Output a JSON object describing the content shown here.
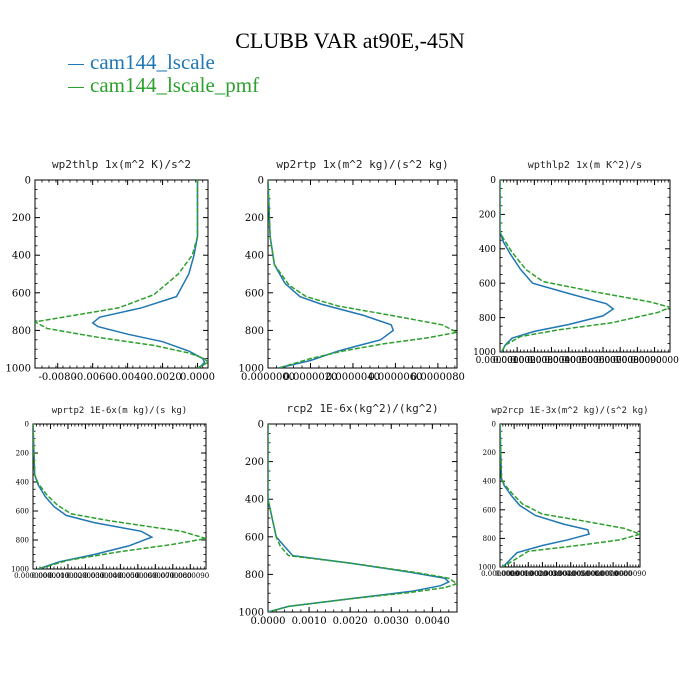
{
  "figure": {
    "title": "CLUBB VAR at90E,-45N",
    "legend": [
      {
        "label": "cam144_lscale",
        "color": "#1f77b4"
      },
      {
        "label": "cam144_lscale_pmf",
        "color": "#2ca02c"
      }
    ]
  },
  "chart_data": [
    {
      "type": "line",
      "title": "wp2thlp  1x(m^2 K)/s^2",
      "xlim": [
        -0.0093,
        0.0006
      ],
      "ylim": [
        1000,
        0
      ],
      "x_ticks": [
        -0.008,
        -0.006,
        -0.004,
        -0.002,
        0.0
      ],
      "x_tick_labels": [
        "-0.0080",
        "-0.0060",
        "-0.0040",
        "-0.0020",
        "0.0000"
      ],
      "y_ticks": [
        0,
        200,
        400,
        600,
        800,
        1000
      ],
      "series": [
        {
          "color": "#1f77b4",
          "dashed": false,
          "x": [
            0.0,
            0.0,
            0.0,
            -0.0002,
            -0.0005,
            -0.0012,
            -0.0032,
            -0.0056,
            -0.006,
            -0.0057,
            -0.004,
            -0.002,
            -0.0005,
            0.0003,
            0.0004,
            0.0002,
            0.0
          ],
          "y": [
            0,
            100,
            300,
            400,
            500,
            620,
            680,
            730,
            760,
            780,
            820,
            860,
            910,
            950,
            970,
            990,
            1000
          ]
        },
        {
          "color": "#2ca02c",
          "dashed": true,
          "x": [
            0.0,
            0.0,
            0.0,
            -0.0003,
            -0.0011,
            -0.0025,
            -0.0045,
            -0.0077,
            -0.0093,
            -0.0086,
            -0.0055,
            -0.0025,
            -0.0005,
            0.0004,
            0.0006,
            0.0002,
            0.0
          ],
          "y": [
            0,
            100,
            300,
            400,
            500,
            610,
            680,
            730,
            755,
            790,
            840,
            880,
            920,
            950,
            970,
            990,
            1000
          ]
        }
      ]
    },
    {
      "type": "line",
      "title": "wp2rtp  1x(m^2 kg)/(s^2 kg)",
      "xlim": [
        0,
        8.9e-06
      ],
      "ylim": [
        1000,
        0
      ],
      "x_ticks": [
        0,
        2e-06,
        4e-06,
        6e-06,
        8e-06
      ],
      "x_tick_labels": [
        "0.0000000",
        "0.0000020",
        "0.0000040",
        "0.0000060",
        "0.0000080"
      ],
      "y_ticks": [
        0,
        200,
        400,
        600,
        800,
        1000
      ],
      "series": [
        {
          "color": "#1f77b4",
          "dashed": false,
          "x": [
            0,
            1e-07,
            3e-07,
            8e-07,
            1.5e-06,
            2.5e-06,
            4.5e-06,
            5.8e-06,
            5.9e-06,
            5.3e-06,
            4.3e-06,
            3.3e-06,
            2e-06,
            5e-07
          ],
          "y": [
            0,
            300,
            450,
            550,
            620,
            660,
            720,
            770,
            800,
            850,
            880,
            910,
            960,
            1000
          ]
        },
        {
          "color": "#2ca02c",
          "dashed": true,
          "x": [
            0,
            1e-07,
            3e-07,
            1e-06,
            1.8e-06,
            3.3e-06,
            5.8e-06,
            8.2e-06,
            8.9e-06,
            7.5e-06,
            5.5e-06,
            3.5e-06,
            2e-06,
            5e-07
          ],
          "y": [
            0,
            300,
            450,
            560,
            620,
            670,
            720,
            770,
            810,
            840,
            870,
            910,
            950,
            1000
          ]
        }
      ]
    },
    {
      "type": "line",
      "title": "wpthlp2  1x(m K^2)/s",
      "xlim": [
        0,
        0.0099
      ],
      "ylim": [
        1000,
        0
      ],
      "x_ticks": [
        0,
        0.001,
        0.002,
        0.003,
        0.004,
        0.005,
        0.006,
        0.007,
        0.008,
        0.009
      ],
      "x_tick_labels": [
        "0.0000000",
        "0.0010000",
        "0.0020000",
        "0.0030000",
        "0.0040000",
        "0.0050000",
        "0.0060000",
        "0.0070000",
        "0.0080000",
        "0.0090000"
      ],
      "y_ticks": [
        0,
        200,
        400,
        600,
        800,
        1000
      ],
      "series": [
        {
          "color": "#1f77b4",
          "dashed": false,
          "x": [
            0,
            0.0,
            0.0002,
            0.0006,
            0.0012,
            0.0019,
            0.004,
            0.0062,
            0.0066,
            0.006,
            0.004,
            0.002,
            0.0007,
            0.0003,
            0.0001
          ],
          "y": [
            0,
            300,
            360,
            430,
            520,
            600,
            660,
            720,
            750,
            790,
            840,
            880,
            920,
            960,
            1000
          ]
        },
        {
          "color": "#2ca02c",
          "dashed": true,
          "x": [
            0,
            0.0,
            0.0002,
            0.0007,
            0.0015,
            0.0025,
            0.0055,
            0.0088,
            0.0099,
            0.0092,
            0.0065,
            0.0035,
            0.0012,
            0.0003,
            0.0001
          ],
          "y": [
            0,
            300,
            340,
            420,
            520,
            590,
            650,
            710,
            740,
            770,
            830,
            870,
            910,
            960,
            1000
          ]
        }
      ]
    },
    {
      "type": "line",
      "title": "wprtp2  1E-6x(m kg)/(s kg)",
      "xlim": [
        0,
        9.9e-06
      ],
      "ylim": [
        1000,
        0
      ],
      "x_ticks": [
        0,
        1e-06,
        2e-06,
        3e-06,
        4e-06,
        5e-06,
        6e-06,
        7e-06,
        8e-06,
        9e-06
      ],
      "x_tick_labels": [
        "0.0000000",
        "0.0000010",
        "0.0000020",
        "0.0000030",
        "0.0000040",
        "0.0000050",
        "0.0000060",
        "0.0000070",
        "0.0000080",
        "0.0000090"
      ],
      "y_ticks": [
        0,
        200,
        400,
        600,
        800,
        1000
      ],
      "series": [
        {
          "color": "#1f77b4",
          "dashed": false,
          "x": [
            0,
            1e-07,
            3e-07,
            7e-07,
            1.2e-06,
            1.9e-06,
            3.5e-06,
            6.2e-06,
            6.8e-06,
            5.5e-06,
            3.5e-06,
            1.5e-06,
            3e-07
          ],
          "y": [
            0,
            350,
            420,
            500,
            570,
            630,
            680,
            740,
            780,
            840,
            900,
            950,
            1000
          ]
        },
        {
          "color": "#2ca02c",
          "dashed": true,
          "x": [
            0,
            1e-07,
            3e-07,
            8e-07,
            1.4e-06,
            2.2e-06,
            4.5e-06,
            8.5e-06,
            9.9e-06,
            8e-06,
            5e-06,
            2e-06,
            3e-07
          ],
          "y": [
            0,
            350,
            410,
            490,
            560,
            620,
            670,
            740,
            790,
            830,
            880,
            940,
            1000
          ]
        }
      ]
    },
    {
      "type": "line",
      "title": "rcp2  1E-6x(kg^2)/(kg^2)",
      "xlim": [
        0,
        0.0046
      ],
      "ylim": [
        1000,
        0
      ],
      "x_ticks": [
        0,
        0.001,
        0.002,
        0.003,
        0.004
      ],
      "x_tick_labels": [
        "0.0000",
        "0.0010",
        "0.0020",
        "0.0030",
        "0.0040"
      ],
      "y_ticks": [
        0,
        200,
        400,
        600,
        800,
        1000
      ],
      "series": [
        {
          "color": "#1f77b4",
          "dashed": false,
          "x": [
            0,
            0.0,
            0.0001,
            0.0002,
            0.0004,
            0.0006,
            0.002,
            0.0035,
            0.0043,
            0.0044,
            0.0042,
            0.0035,
            0.002,
            0.0005,
            0.0
          ],
          "y": [
            0,
            400,
            500,
            600,
            650,
            700,
            740,
            790,
            820,
            840,
            860,
            890,
            930,
            970,
            1000
          ]
        },
        {
          "color": "#2ca02c",
          "dashed": true,
          "x": [
            0,
            0.0,
            0.0001,
            0.0002,
            0.0003,
            0.0005,
            0.002,
            0.0036,
            0.0044,
            0.0046,
            0.0043,
            0.0035,
            0.002,
            0.0005,
            0.0
          ],
          "y": [
            0,
            400,
            500,
            600,
            650,
            700,
            740,
            790,
            820,
            850,
            870,
            895,
            930,
            970,
            1000
          ]
        }
      ]
    },
    {
      "type": "line",
      "title": "wp2rcp  1E-3x(m^2 kg)/(s^2 kg)",
      "xlim": [
        0,
        9.9e-06
      ],
      "ylim": [
        1000,
        0
      ],
      "x_ticks": [
        0,
        1e-06,
        2e-06,
        3e-06,
        4e-06,
        5e-06,
        6e-06,
        7e-06,
        8e-06,
        9e-06
      ],
      "x_tick_labels": [
        "0.0000000",
        "0.0000010",
        "0.0000020",
        "0.0000030",
        "0.0000040",
        "0.0000050",
        "0.0000060",
        "0.0000070",
        "0.0000080",
        "0.0000090"
      ],
      "y_ticks": [
        0,
        200,
        400,
        600,
        800,
        1000
      ],
      "series": [
        {
          "color": "#1f77b4",
          "dashed": false,
          "x": [
            0,
            1e-07,
            3e-07,
            8e-07,
            1.4e-06,
            2.5e-06,
            4.5e-06,
            6.2e-06,
            6.3e-06,
            4.8e-06,
            3e-06,
            1.2e-06,
            2e-07
          ],
          "y": [
            0,
            380,
            430,
            500,
            570,
            640,
            700,
            740,
            770,
            810,
            850,
            900,
            1000
          ]
        },
        {
          "color": "#2ca02c",
          "dashed": true,
          "x": [
            0,
            1e-07,
            3e-07,
            9e-07,
            1.6e-06,
            3e-06,
            6e-06,
            8.8e-06,
            9.9e-06,
            8.5e-06,
            5.5e-06,
            2e-06,
            2e-07
          ],
          "y": [
            0,
            380,
            420,
            490,
            560,
            630,
            680,
            730,
            770,
            810,
            850,
            890,
            1000
          ]
        }
      ]
    }
  ]
}
